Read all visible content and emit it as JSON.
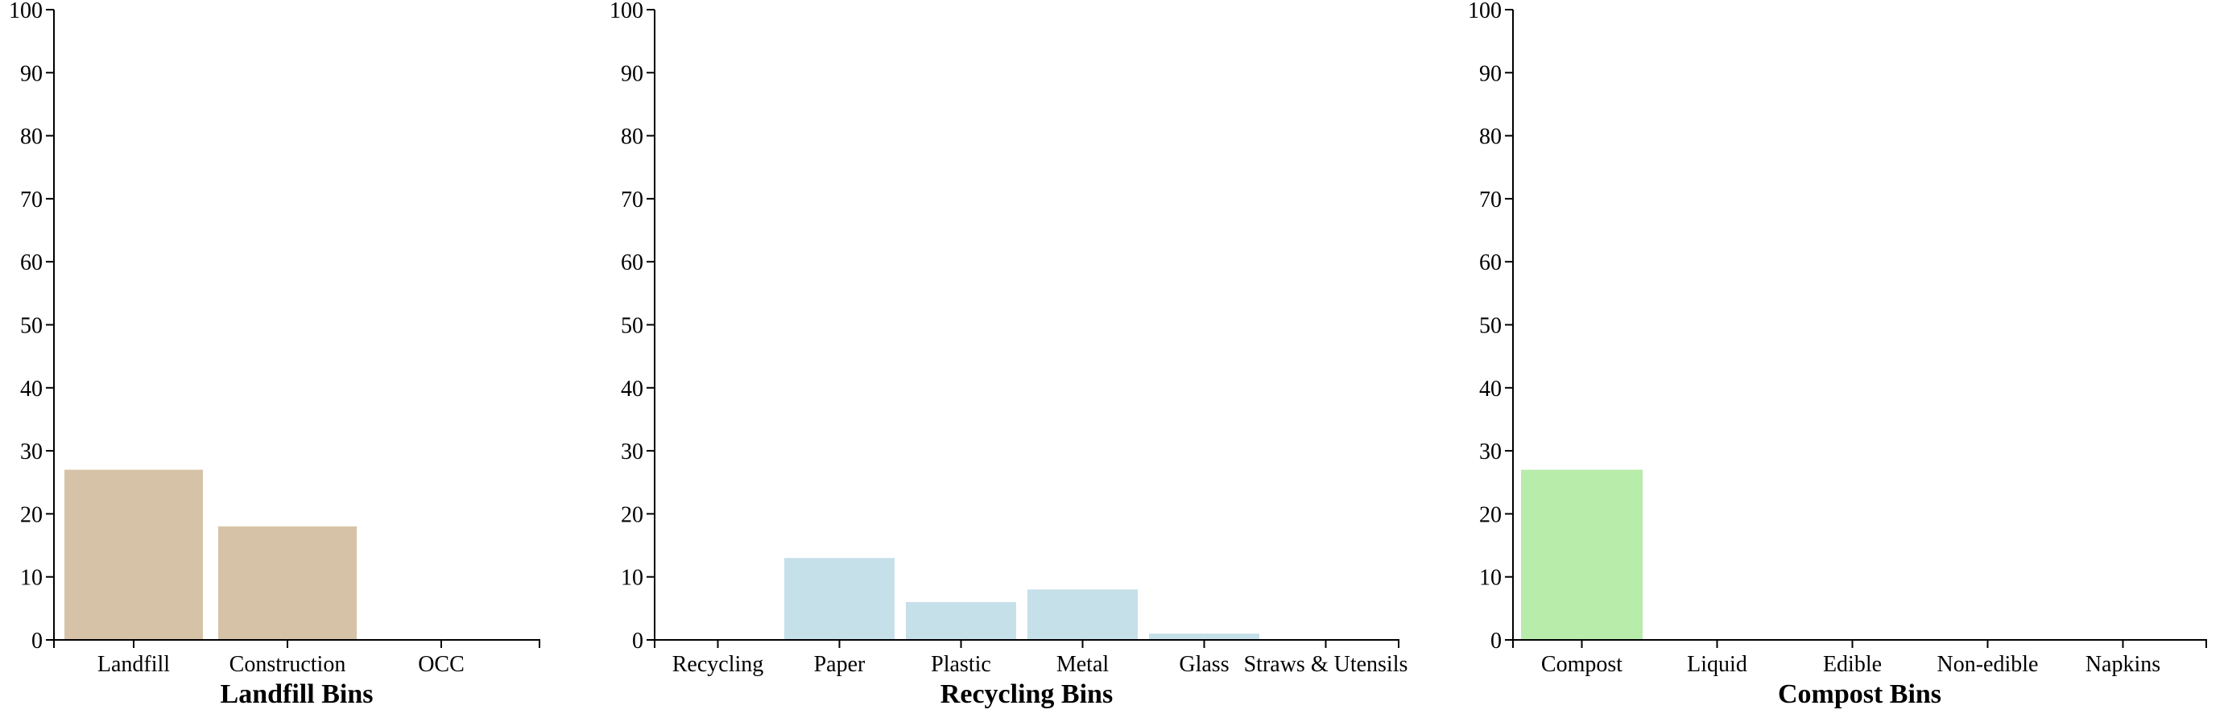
{
  "chart_data": [
    {
      "type": "bar",
      "title": "",
      "xlabel": "Landfill Bins",
      "ylabel": "",
      "ylim": [
        0,
        100
      ],
      "yticks": [
        0,
        10,
        20,
        30,
        40,
        50,
        60,
        70,
        80,
        90,
        100
      ],
      "categories": [
        "Landfill",
        "Construction",
        "OCC"
      ],
      "values": [
        27,
        18,
        0
      ],
      "color": "#d6c3a7"
    },
    {
      "type": "bar",
      "title": "",
      "xlabel": "Recycling Bins",
      "ylabel": "",
      "ylim": [
        0,
        100
      ],
      "yticks": [
        0,
        10,
        20,
        30,
        40,
        50,
        60,
        70,
        80,
        90,
        100
      ],
      "categories": [
        "Recycling",
        "Paper",
        "Plastic",
        "Metal",
        "Glass",
        "Straws & Utensils"
      ],
      "values": [
        0,
        13,
        6,
        8,
        1,
        0
      ],
      "color": "#c6e0ea"
    },
    {
      "type": "bar",
      "title": "",
      "xlabel": "Compost Bins",
      "ylabel": "",
      "ylim": [
        0,
        100
      ],
      "yticks": [
        0,
        10,
        20,
        30,
        40,
        50,
        60,
        70,
        80,
        90,
        100
      ],
      "categories": [
        "Compost",
        "Liquid",
        "Edible",
        "Non-edible",
        "Napkins"
      ],
      "values": [
        27,
        0,
        0,
        0,
        0
      ],
      "color": "#b7ecaa"
    }
  ]
}
